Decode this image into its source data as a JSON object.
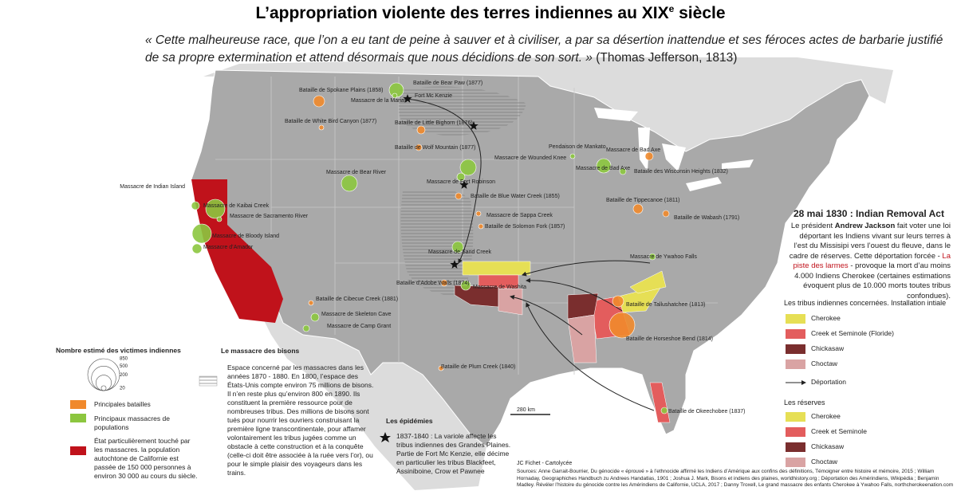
{
  "header": {
    "title": "L’appropriation violente des terres indiennes au XIX",
    "title_sup": "e",
    "title_end": " siècle",
    "quote": "« Cette malheureuse race, que l’on a eu tant de peine à sauver et à civiliser, a par sa désertion inattendue et ses féroces actes de barbarie justifié de sa propre extermination et attend désormais que nous décidions de son sort. »",
    "quote_source": " (Thomas Jefferson, 1813)"
  },
  "map": {
    "battles": [
      {
        "label": "Bataille de Spokane Plains (1858)",
        "color": "#f0892c"
      },
      {
        "label": "Bataille de White Bird Canyon (1877)",
        "color": "#f0892c"
      },
      {
        "label": "Bataille de Bear Paw (1877)",
        "color": "#8cc63f"
      },
      {
        "label": "Massacre de la Marias",
        "color": "#8cc63f"
      },
      {
        "label": "Bataille de Little Bighorn (1876)",
        "color": "#f0892c"
      },
      {
        "label": "Bataille de Wolf Mountain (1877)",
        "color": "#f0892c"
      },
      {
        "label": "Massacre de Wounded Knee",
        "color": "#8cc63f"
      },
      {
        "label": "Massacre de Fort Robinson",
        "color": "#8cc63f"
      },
      {
        "label": "Bataille de Blue Water Creek (1855)",
        "color": "#f0892c"
      },
      {
        "label": "Massacre de Sappa Creek",
        "color": "#f0892c"
      },
      {
        "label": "Bataille de Solomon Fork (1857)",
        "color": "#f0892c"
      },
      {
        "label": "Massacre de Sand Creek",
        "color": "#8cc63f"
      },
      {
        "label": "Bataille d’Adobe Walls (1874)",
        "color": "#f0892c"
      },
      {
        "label": "Massacre de Washita",
        "color": "#8cc63f"
      },
      {
        "label": "Massacre de Bear River",
        "color": "#8cc63f"
      },
      {
        "label": "Massacre de Kaibai Creek",
        "color": "#8cc63f"
      },
      {
        "label": "Massacre de Sacramento River",
        "color": "#8cc63f"
      },
      {
        "label": "Massacre de Bloody Island",
        "color": "#8cc63f"
      },
      {
        "label": "Massacre d’Amador",
        "color": "#8cc63f"
      },
      {
        "label": "Massacre de Indian Island",
        "color": "#8cc63f"
      },
      {
        "label": "Bataille de Cibecue Creek (1881)",
        "color": "#f0892c"
      },
      {
        "label": "Massacre de Skeleton Cave",
        "color": "#8cc63f"
      },
      {
        "label": "Massacre de Camp Grant",
        "color": "#8cc63f"
      },
      {
        "label": "Bataille de Plum Creek (1840)",
        "color": "#f0892c"
      },
      {
        "label": "Pendaison de Mankato",
        "color": "#8cc63f"
      },
      {
        "label": "Massacre de Bad Axe",
        "color": "#f0892c"
      },
      {
        "label": "Massacre de Bad Axe",
        "color": "#8cc63f"
      },
      {
        "label": "Bataille des Wisconsin Heights (1832)",
        "color": "#8cc63f"
      },
      {
        "label": "Bataille de Tippecanoe (1811)",
        "color": "#f0892c"
      },
      {
        "label": "Bataille de Wabash (1791)",
        "color": "#f0892c"
      },
      {
        "label": "Massacre de Ywahoo Falls",
        "color": "#8cc63f"
      },
      {
        "label": "Bataille de Tallushatchee (1813)",
        "color": "#f0892c"
      },
      {
        "label": "Bataille de Horseshoe Bend (1814)",
        "color": "#f0892c"
      },
      {
        "label": "Bataille de Okeechobee (1837)",
        "color": "#8cc63f"
      }
    ],
    "fort": "Fort Mc Kenzie",
    "scale": "280 km",
    "california_color": "#c0121b"
  },
  "removal": {
    "title": "28 mai 1830 : Indian Removal Act",
    "text": [
      "Le président ",
      "Andrew Jackson",
      " fait voter une loi déportant les Indiens vivant sur leurs terres à l’est du Missisipi vers l’ouest du fleuve, dans le cadre de réserves. Cette déportation forcée - ",
      "La piste des larmes",
      " - provoque la mort d’au moins 4.000 Indiens Cherokee (certaines estimations évoquent plus de 10.000 morts toutes tribus confondues)."
    ]
  },
  "tribes": {
    "title": "Les tribus indiennes concernées. Installation intiale",
    "items": [
      {
        "label": "Cherokee",
        "color": "#e6df55"
      },
      {
        "label": "Creek et Seminole (Floride)",
        "color": "#e35d5d"
      },
      {
        "label": "Chickasaw",
        "color": "#7a2e2e"
      },
      {
        "label": "Choctaw",
        "color": "#d9a3a3"
      }
    ],
    "deportation": "Déportation"
  },
  "reserves": {
    "title": "Les réserves",
    "items": [
      {
        "label": "Cherokee",
        "color": "#e6df55"
      },
      {
        "label": "Creek et Seminole",
        "color": "#e35d5d"
      },
      {
        "label": "Chickasaw",
        "color": "#7a2e2e"
      },
      {
        "label": "Choctaw",
        "color": "#d9a3a3"
      }
    ]
  },
  "victims": {
    "title": "Nombre estimé des victimes indiennes",
    "scale": [
      850,
      500,
      200,
      20
    ],
    "battles": "Principales batailles",
    "massacres": "Principaux massacres de populations",
    "california": "État particulièrement touché par les massacres. la population autochtone de Californie est passée de 150 000 personnes à environ 30 000 au cours du siècle."
  },
  "bisons": {
    "title": "Le massacre des bisons",
    "text": "Espace concerné par les massacres dans les années 1870 - 1880. En 1800, l’espace des États-Unis compte environ 75 millions de bisons. Il n’en reste plus qu’environ 800 en 1890. Ils constituent la première ressource pour de nombreuses tribus. Des millions de bisons sont tués pour nourrir les ouvriers construisant la première ligne transcontinentale, pour affamer volontairement les tribus jugées comme un obstacle à cette construction et à la conquête (celle-ci doit être associée à la ruée vers l’or), ou pour le simple plaisir des voyageurs dans les trains."
  },
  "epidemics": {
    "title": "Les épidémies",
    "text": "1837-1840 : La variole affecte les tribus indiennes des Grandes Plaines. Partie de Fort Mc Kenzie, elle décime en particulier les tribus Blackfeet, Assiniboine, Crow et Pawnee"
  },
  "credits": {
    "author": "JC Fichet - Cartolycée",
    "sources": "Sources: Anne Garrait-Bourrier, Du génocide « éprouvé » à l’ethnocide affirmé les Indiens d’Amérique aux confins des définitions, Témoigner entre histoire et mémoire, 2015 ; William Hornaday, Geographiches Handbuch zu Andrees Handatlas, 1901 ; Joshua J. Mark, Bisons et indiens des plaines, worldhistory.org ; Déportation des Amérindiens, Wikipédia ; Benjamin Madley. Révéler l’histoire du génocide contre les Amérindiens de Californie, UCLA, 2017 ; Danny Troxell, Le grand massacre des enfants Cherokee à Ywahoo Falls, northcherokeenation.com"
  }
}
